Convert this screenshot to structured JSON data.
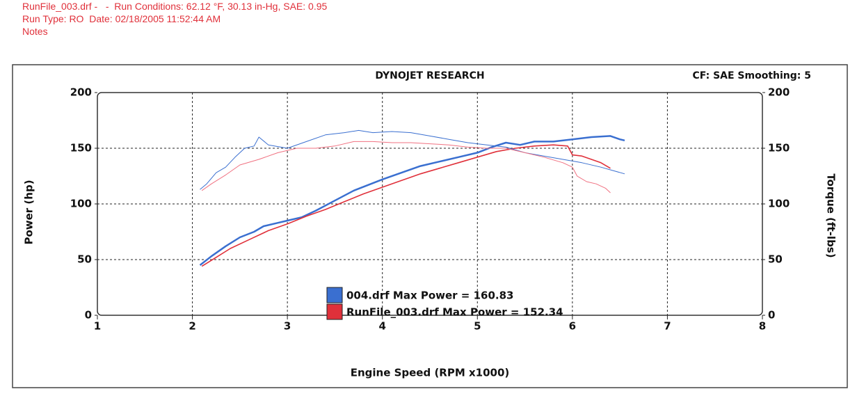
{
  "chart_data": {
    "type": "line",
    "header": [
      "RunFile_003.drf -   -  Run Conditions: 62.12 °F, 30.13 in-Hg, SAE: 0.95",
      "Run Type: RO  Date: 02/18/2005 11:52:44 AM",
      "Notes"
    ],
    "title": "DYNOJET RESEARCH",
    "subtitle": "CF: SAE  Smoothing: 5",
    "x_label": "Engine Speed (RPM x1000)",
    "y_label": "Power (hp)",
    "y2_label": "Torque (ft-lbs)",
    "xlim": [
      1,
      8
    ],
    "xticks": [
      1,
      2,
      3,
      4,
      5,
      6,
      7,
      8
    ],
    "ylim": [
      0,
      200
    ],
    "yticks": [
      0,
      50,
      100,
      150,
      200
    ],
    "y2lim": [
      0,
      200
    ],
    "y2ticks": [
      0,
      50,
      100,
      150,
      200
    ],
    "grid": true,
    "legend": [
      {
        "label": "004.drf Max Power = 160.83",
        "color": "#3a6fd0"
      },
      {
        "label": "RunFile_003.drf Max Power = 152.34",
        "color": "#e0303a"
      }
    ],
    "series": [
      {
        "color": "#3a6fd0",
        "line_width": 2.5,
        "axis": "y",
        "x": [
          2.08,
          2.2,
          2.35,
          2.5,
          2.65,
          2.75,
          2.9,
          3.0,
          3.15,
          3.3,
          3.5,
          3.7,
          3.85,
          4.0,
          4.2,
          4.4,
          4.6,
          4.8,
          5.0,
          5.15,
          5.3,
          5.45,
          5.6,
          5.8,
          6.0,
          6.2,
          6.4,
          6.5,
          6.55
        ],
        "values": [
          45,
          53,
          62,
          70,
          75,
          80,
          83,
          85,
          88,
          94,
          103,
          112,
          117,
          122,
          128,
          134,
          138,
          142,
          146,
          151,
          155,
          153,
          156,
          156,
          158,
          160,
          161,
          158,
          157
        ]
      },
      {
        "color": "#e0303a",
        "line_width": 1.6,
        "axis": "y",
        "x": [
          2.1,
          2.25,
          2.4,
          2.6,
          2.8,
          3.0,
          3.2,
          3.4,
          3.6,
          3.8,
          4.0,
          4.2,
          4.4,
          4.6,
          4.8,
          5.0,
          5.2,
          5.4,
          5.6,
          5.8,
          5.95,
          6.0,
          6.1,
          6.2,
          6.3,
          6.4
        ],
        "values": [
          44,
          52,
          60,
          68,
          76,
          82,
          89,
          95,
          102,
          109,
          115,
          121,
          127,
          132,
          137,
          142,
          147,
          150,
          152,
          153,
          152,
          144,
          143,
          140,
          137,
          132
        ]
      },
      {
        "color": "#3a6fd0",
        "line_width": 1,
        "axis": "y2",
        "x": [
          2.08,
          2.15,
          2.25,
          2.35,
          2.45,
          2.55,
          2.65,
          2.7,
          2.8,
          3.0,
          3.2,
          3.4,
          3.6,
          3.75,
          3.9,
          4.1,
          4.3,
          4.5,
          4.7,
          4.9,
          5.1,
          5.3,
          5.5,
          5.7,
          5.9,
          6.1,
          6.3,
          6.55
        ],
        "values": [
          113,
          118,
          128,
          133,
          142,
          150,
          152,
          160,
          153,
          150,
          156,
          162,
          164,
          166,
          164,
          165,
          164,
          161,
          158,
          155,
          153,
          151,
          146,
          143,
          140,
          137,
          133,
          127
        ]
      },
      {
        "color": "#f07080",
        "line_width": 1,
        "axis": "y2",
        "x": [
          2.1,
          2.2,
          2.35,
          2.5,
          2.7,
          2.9,
          3.1,
          3.3,
          3.5,
          3.7,
          3.9,
          4.1,
          4.3,
          4.5,
          4.7,
          4.9,
          5.1,
          5.3,
          5.5,
          5.7,
          5.9,
          6.0,
          6.05,
          6.15,
          6.25,
          6.35,
          6.4
        ],
        "values": [
          112,
          118,
          126,
          135,
          140,
          146,
          150,
          150,
          152,
          156,
          156,
          155,
          155,
          154,
          153,
          151,
          150,
          150,
          146,
          142,
          137,
          133,
          125,
          120,
          118,
          114,
          110
        ]
      }
    ]
  }
}
